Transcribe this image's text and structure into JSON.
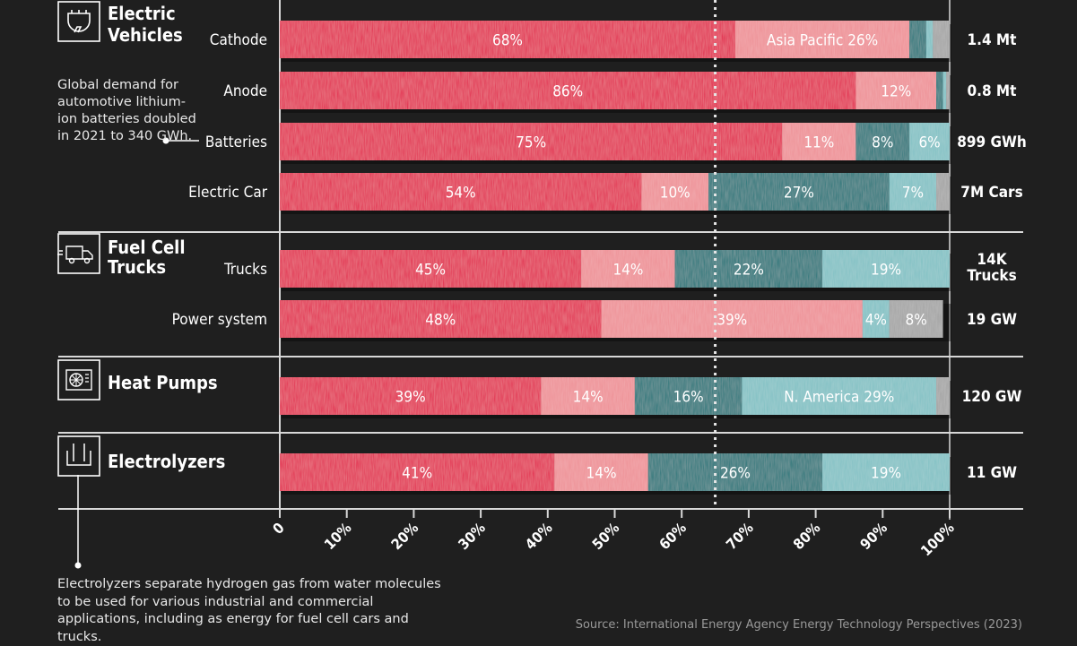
{
  "chart_data": {
    "type": "bar",
    "orientation": "horizontal",
    "stacked": true,
    "normalized_to_percent": true,
    "xlim": [
      0,
      100
    ],
    "x_tick_labels": [
      "0",
      "10%",
      "20%",
      "30%",
      "40%",
      "50%",
      "60%",
      "70%",
      "80%",
      "90%",
      "100%"
    ],
    "reference_line_at": 65,
    "sections": [
      {
        "title_lines": [
          "Electric",
          "Vehicles"
        ],
        "icon": "ev-charger-icon",
        "rows": [
          0,
          1,
          2,
          3
        ]
      },
      {
        "title_lines": [
          "Fuel Cell",
          "Trucks"
        ],
        "icon": "hydrogen-truck-icon",
        "rows": [
          4,
          5
        ]
      },
      {
        "title_lines": [
          "Heat Pumps"
        ],
        "icon": "heat-pump-icon",
        "rows": [
          6
        ]
      },
      {
        "title_lines": [
          "Electrolyzers"
        ],
        "icon": "electrolyzer-icon",
        "rows": [
          7
        ]
      }
    ],
    "categories": [
      "Cathode",
      "Anode",
      "Batteries",
      "Electric Car",
      "Trucks",
      "Power system",
      "",
      ""
    ],
    "totals": [
      [
        "1.4 Mt"
      ],
      [
        "0.8 Mt"
      ],
      [
        "899 GWh"
      ],
      [
        "7M Cars"
      ],
      [
        "14K",
        "Trucks"
      ],
      [
        "19 GW"
      ],
      [
        "120 GW"
      ],
      [
        "11 GW"
      ]
    ],
    "segment_colors": [
      "#e2204a",
      "#ee8e94",
      "#137377",
      "#7fc0c3",
      "#a3a3a3"
    ],
    "rows": [
      {
        "values": [
          68,
          26,
          2.5,
          1,
          2.5
        ],
        "labels": [
          "68%",
          "Asia Pacific  26%",
          "",
          "",
          ""
        ]
      },
      {
        "values": [
          86,
          12,
          1,
          0.5,
          0.5
        ],
        "labels": [
          "86%",
          "12%",
          "",
          "",
          ""
        ]
      },
      {
        "values": [
          75,
          11,
          8,
          6,
          0
        ],
        "labels": [
          "75%",
          "11%",
          "8%",
          "6%",
          ""
        ]
      },
      {
        "values": [
          54,
          10,
          27,
          7,
          2
        ],
        "labels": [
          "54%",
          "10%",
          "27%",
          "7%",
          ""
        ]
      },
      {
        "values": [
          45,
          14,
          22,
          19,
          0
        ],
        "labels": [
          "45%",
          "14%",
          "22%",
          "19%",
          ""
        ]
      },
      {
        "values": [
          48,
          39,
          0,
          4,
          8
        ],
        "labels": [
          "48%",
          "39%",
          "",
          "4%",
          "8%"
        ]
      },
      {
        "values": [
          39,
          14,
          16,
          29,
          2
        ],
        "labels": [
          "39%",
          "14%",
          "16%",
          "N. America 29%",
          ""
        ]
      },
      {
        "values": [
          41,
          14,
          26,
          19,
          0
        ],
        "labels": [
          "41%",
          "14%",
          "26%",
          "19%",
          ""
        ]
      }
    ]
  },
  "annotation_batteries": "Global demand for automotive lithium-ion batteries doubled in 2021 to 340 GWh.",
  "footnote_electrolyzers": "Electrolyzers separate hydrogen gas from water molecules to be used for various industrial and commercial applications, including as energy for fuel cell cars and trucks.",
  "source": "Source: International Energy Agency Energy Technology Perspectives (2023)"
}
